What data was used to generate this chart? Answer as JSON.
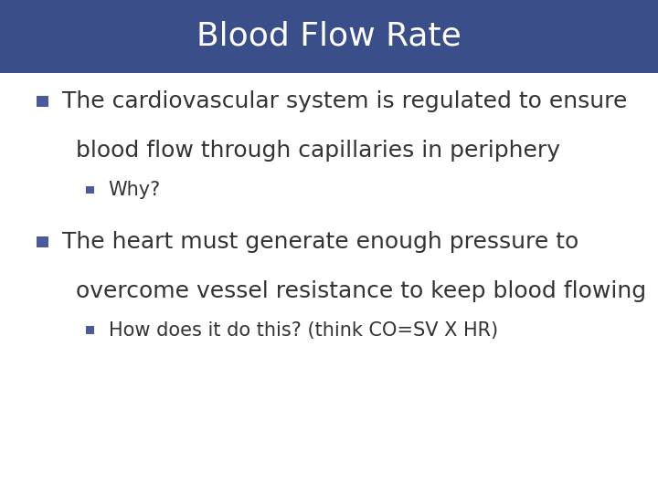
{
  "title": "Blood Flow Rate",
  "title_bg_color": "#3A4F8A",
  "title_text_color": "#FFFFFF",
  "title_fontsize": 26,
  "bg_color": "#FFFFFF",
  "bullet_color": "#4A5A9A",
  "text_color": "#333333",
  "bullet1_line1": "The cardiovascular system is regulated to ensure",
  "bullet1_line2": "blood flow through capillaries in periphery",
  "sub_bullet1": "Why?",
  "bullet2_line1": "The heart must generate enough pressure to",
  "bullet2_line2": "overcome vessel resistance to keep blood flowing",
  "sub_bullet2": "How does it do this? (think CO=SV X HR)",
  "main_fontsize": 18,
  "sub_fontsize": 15,
  "title_bar_height": 0.148
}
